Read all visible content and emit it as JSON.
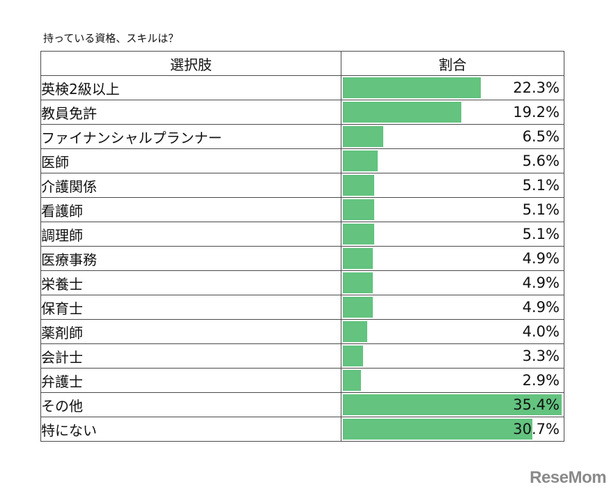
{
  "title": "持っている資格、スキルは？",
  "header": {
    "col_option": "選択肢",
    "col_ratio": "割合"
  },
  "chart_data": {
    "type": "bar",
    "title": "持っている資格、スキルは？",
    "xlabel": "選択肢",
    "ylabel": "割合",
    "categories": [
      "英検2級以上",
      "教員免許",
      "ファイナンシャルプランナー",
      "医師",
      "介護関係",
      "看護師",
      "調理師",
      "医療事務",
      "栄養士",
      "保育士",
      "薬剤師",
      "会計士",
      "弁護士",
      "その他",
      "特にない"
    ],
    "values": [
      22.3,
      19.2,
      6.5,
      5.6,
      5.1,
      5.1,
      5.1,
      4.9,
      4.9,
      4.9,
      4.0,
      3.3,
      2.9,
      35.4,
      30.7
    ],
    "value_labels": [
      "22.3%",
      "19.2%",
      "6.5%",
      "5.6%",
      "5.1%",
      "5.1%",
      "5.1%",
      "4.9%",
      "4.9%",
      "4.9%",
      "4.0%",
      "3.3%",
      "2.9%",
      "35.4%",
      "30.7%"
    ],
    "ylim": [
      0,
      35.4
    ],
    "bar_color": "#63c37f"
  },
  "watermark": "ReseMom"
}
